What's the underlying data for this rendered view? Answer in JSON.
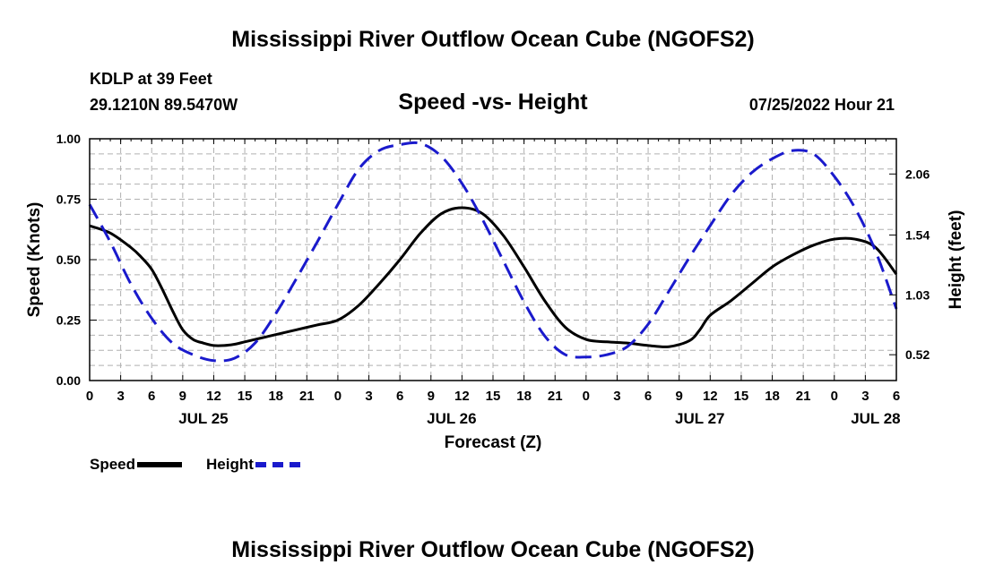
{
  "title": "Mississippi River Outflow Ocean Cube (NGOFS2)",
  "footer_title": "Mississippi River Outflow Ocean Cube (NGOFS2)",
  "station": "KDLP at 39 Feet",
  "coords": "29.1210N  89.5470W",
  "subtitle": "Speed -vs- Height",
  "datetime": "07/25/2022 Hour 21",
  "legend": {
    "speed": "Speed",
    "height": "Height"
  },
  "colors": {
    "speed": "#000000",
    "height": "#1a1acc",
    "grid": "#b0b0b0"
  },
  "chart_data": {
    "type": "line",
    "xlabel": "Forecast (Z)",
    "ylabel": "Speed (Knots)",
    "ylabel_right": "Height (feet)",
    "xlim": [
      0,
      78
    ],
    "ylim": [
      0,
      1.0
    ],
    "ylim_right": [
      0.3,
      2.36
    ],
    "x_tick_labels": [
      "0",
      "3",
      "6",
      "9",
      "12",
      "15",
      "18",
      "21",
      "0",
      "3",
      "6",
      "9",
      "12",
      "15",
      "18",
      "21",
      "0",
      "3",
      "6",
      "9",
      "12",
      "15",
      "18",
      "21",
      "0",
      "3",
      "6"
    ],
    "y_ticks": [
      "0.00",
      "0.25",
      "0.50",
      "0.75",
      "1.00"
    ],
    "y_ticks_right": [
      "0.52",
      "1.03",
      "1.54",
      "2.06"
    ],
    "date_labels": [
      {
        "label": "JUL 25",
        "x": 11
      },
      {
        "label": "JUL 26",
        "x": 35
      },
      {
        "label": "JUL 27",
        "x": 59
      },
      {
        "label": "JUL 28",
        "x": 76
      }
    ],
    "grid": true,
    "series": [
      {
        "name": "Speed",
        "axis": "left",
        "x": [
          0,
          2,
          4,
          5,
          6,
          7,
          8,
          9,
          10,
          11,
          12,
          13,
          14,
          15,
          16,
          17,
          18,
          20,
          22,
          24,
          26,
          28,
          30,
          32,
          34,
          36,
          38,
          40,
          42,
          44,
          46,
          48,
          50,
          52,
          54,
          56,
          58,
          59,
          60,
          62,
          64,
          66,
          68,
          70,
          72,
          74,
          76,
          78
        ],
        "values": [
          0.64,
          0.61,
          0.55,
          0.51,
          0.46,
          0.38,
          0.29,
          0.21,
          0.17,
          0.155,
          0.145,
          0.145,
          0.15,
          0.16,
          0.17,
          0.18,
          0.19,
          0.21,
          0.23,
          0.25,
          0.31,
          0.4,
          0.5,
          0.61,
          0.69,
          0.715,
          0.69,
          0.6,
          0.47,
          0.33,
          0.22,
          0.17,
          0.16,
          0.155,
          0.145,
          0.14,
          0.165,
          0.21,
          0.27,
          0.33,
          0.4,
          0.47,
          0.52,
          0.56,
          0.585,
          0.585,
          0.55,
          0.44
        ]
      },
      {
        "name": "Height",
        "axis": "right",
        "x": [
          0,
          2,
          4,
          6,
          8,
          10,
          12,
          14,
          16,
          18,
          20,
          22,
          24,
          26,
          28,
          30,
          32,
          34,
          36,
          38,
          40,
          42,
          44,
          46,
          48,
          50,
          52,
          54,
          56,
          58,
          60,
          62,
          64,
          66,
          68,
          70,
          72,
          74,
          76,
          78
        ],
        "values": [
          1.8,
          1.48,
          1.12,
          0.83,
          0.62,
          0.52,
          0.47,
          0.49,
          0.62,
          0.87,
          1.17,
          1.48,
          1.8,
          2.1,
          2.26,
          2.31,
          2.32,
          2.21,
          1.98,
          1.67,
          1.32,
          0.97,
          0.68,
          0.52,
          0.5,
          0.52,
          0.59,
          0.78,
          1.06,
          1.35,
          1.62,
          1.88,
          2.07,
          2.19,
          2.26,
          2.23,
          2.04,
          1.77,
          1.4,
          0.91
        ]
      }
    ]
  }
}
